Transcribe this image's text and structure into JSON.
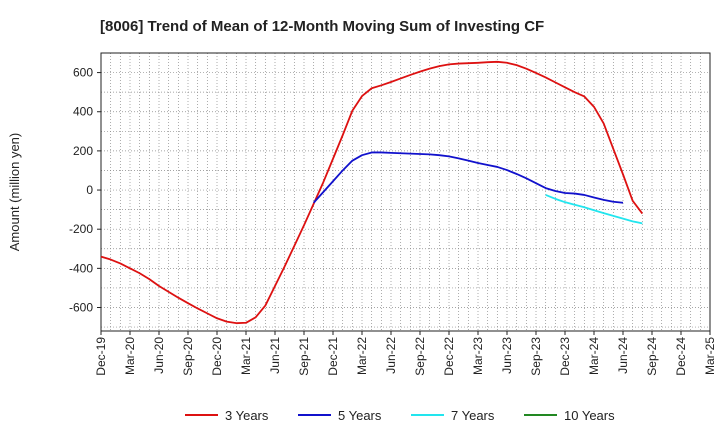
{
  "chart_data": {
    "type": "line",
    "title": "[8006]  Trend of Mean of 12-Month Moving Sum of Investing CF",
    "xlabel": "",
    "ylabel": "Amount (million yen)",
    "ylim": [
      -720,
      700
    ],
    "yticks": [
      -600,
      -400,
      -200,
      0,
      200,
      400,
      600
    ],
    "grid": true,
    "legend_position": "bottom",
    "x_tick_labels": [
      "Dec-19",
      "Mar-20",
      "Jun-20",
      "Sep-20",
      "Dec-20",
      "Mar-21",
      "Jun-21",
      "Sep-21",
      "Dec-21",
      "Mar-22",
      "Jun-22",
      "Sep-22",
      "Dec-22",
      "Mar-23",
      "Jun-23",
      "Sep-23",
      "Dec-23",
      "Mar-24",
      "Jun-24",
      "Sep-24",
      "Dec-24",
      "Mar-25"
    ],
    "series": [
      {
        "name": "3 Years",
        "color": "#dd1111",
        "start_index": 0,
        "values": [
          -340,
          -355,
          -375,
          -400,
          -425,
          -455,
          -490,
          -520,
          -550,
          -578,
          -605,
          -630,
          -655,
          -672,
          -680,
          -678,
          -650,
          -590,
          -490,
          -390,
          -285,
          -180,
          -70,
          40,
          160,
          280,
          405,
          480,
          520,
          535,
          552,
          570,
          588,
          605,
          620,
          633,
          642,
          646,
          648,
          650,
          653,
          655,
          650,
          638,
          620,
          598,
          575,
          550,
          525,
          500,
          478,
          425,
          340,
          210,
          80,
          -55,
          -120
        ]
      },
      {
        "name": "5 Years",
        "color": "#1111cc",
        "start_index": 22,
        "values": [
          -65,
          -10,
          45,
          100,
          150,
          178,
          192,
          192,
          190,
          188,
          186,
          184,
          182,
          178,
          172,
          162,
          150,
          138,
          128,
          118,
          102,
          82,
          60,
          35,
          10,
          -5,
          -15,
          -18,
          -25,
          -38,
          -50,
          -60,
          -65
        ]
      },
      {
        "name": "7 Years",
        "color": "#22e5ee",
        "start_index": 46,
        "values": [
          -25,
          -45,
          -62,
          -75,
          -88,
          -103,
          -118,
          -132,
          -146,
          -160,
          -170
        ]
      },
      {
        "name": "10 Years",
        "color": "#228822",
        "start_index": 0,
        "values": []
      }
    ]
  }
}
